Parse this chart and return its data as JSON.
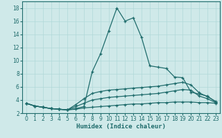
{
  "xlabel": "Humidex (Indice chaleur)",
  "xlim": [
    -0.5,
    23.5
  ],
  "ylim": [
    2,
    19
  ],
  "xticks": [
    0,
    1,
    2,
    3,
    4,
    5,
    6,
    7,
    8,
    9,
    10,
    11,
    12,
    13,
    14,
    15,
    16,
    17,
    18,
    19,
    20,
    21,
    22,
    23
  ],
  "yticks": [
    2,
    4,
    6,
    8,
    10,
    12,
    14,
    16,
    18
  ],
  "bg_color": "#cfe9e9",
  "line_color": "#1e6b6b",
  "grid_color": "#b0d8d8",
  "series": [
    {
      "x": [
        0,
        1,
        2,
        3,
        4,
        5,
        6,
        7,
        8,
        9,
        10,
        11,
        12,
        13,
        14,
        15,
        16,
        17,
        18,
        19,
        20,
        21,
        22,
        23
      ],
      "y": [
        3.5,
        3.1,
        2.9,
        2.7,
        2.6,
        2.5,
        2.7,
        3.0,
        8.3,
        11.0,
        14.5,
        18.0,
        16.0,
        16.5,
        13.5,
        9.2,
        9.0,
        8.8,
        7.5,
        7.4,
        5.2,
        4.9,
        4.6,
        3.7
      ]
    },
    {
      "x": [
        0,
        1,
        2,
        3,
        4,
        5,
        6,
        7,
        8,
        9,
        10,
        11,
        12,
        13,
        14,
        15,
        16,
        17,
        18,
        19,
        20,
        21,
        22,
        23
      ],
      "y": [
        3.5,
        3.1,
        2.9,
        2.7,
        2.6,
        2.5,
        3.3,
        4.2,
        5.0,
        5.3,
        5.5,
        5.6,
        5.7,
        5.8,
        5.9,
        6.0,
        6.1,
        6.3,
        6.5,
        6.7,
        6.3,
        5.1,
        4.5,
        3.8
      ]
    },
    {
      "x": [
        0,
        1,
        2,
        3,
        4,
        5,
        6,
        7,
        8,
        9,
        10,
        11,
        12,
        13,
        14,
        15,
        16,
        17,
        18,
        19,
        20,
        21,
        22,
        23
      ],
      "y": [
        3.5,
        3.1,
        2.9,
        2.7,
        2.6,
        2.5,
        3.0,
        3.5,
        4.0,
        4.2,
        4.4,
        4.5,
        4.6,
        4.7,
        4.8,
        4.9,
        5.0,
        5.2,
        5.4,
        5.6,
        5.5,
        4.6,
        4.2,
        3.6
      ]
    },
    {
      "x": [
        0,
        1,
        2,
        3,
        4,
        5,
        6,
        7,
        8,
        9,
        10,
        11,
        12,
        13,
        14,
        15,
        16,
        17,
        18,
        19,
        20,
        21,
        22,
        23
      ],
      "y": [
        3.5,
        3.1,
        2.9,
        2.7,
        2.6,
        2.5,
        2.6,
        2.8,
        2.9,
        3.0,
        3.1,
        3.2,
        3.3,
        3.4,
        3.4,
        3.5,
        3.6,
        3.6,
        3.7,
        3.7,
        3.7,
        3.6,
        3.6,
        3.5
      ]
    }
  ]
}
